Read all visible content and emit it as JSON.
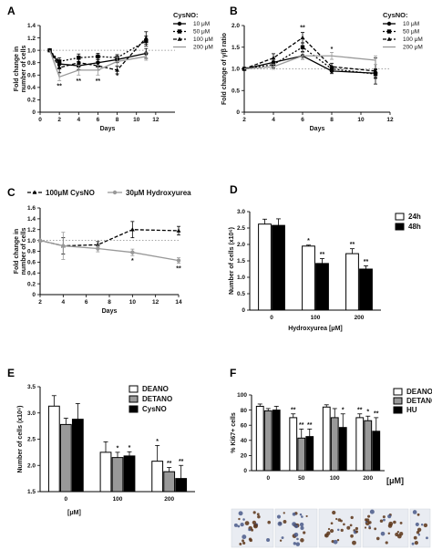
{
  "chart_data": [
    {
      "panel": "A",
      "type": "line",
      "ylabel": "Fold change in number of cells",
      "xlabel": "Days",
      "xlim": [
        0,
        14
      ],
      "ylim": [
        0,
        1.4
      ],
      "xticks": [
        0,
        2,
        4,
        6,
        8,
        10,
        12
      ],
      "yticks": [
        0,
        0.2,
        0.4,
        0.6,
        0.8,
        1.0,
        1.2,
        1.4
      ],
      "tick_labels_y": [
        "0",
        "0.2",
        "0.4",
        "0.6",
        "0.8",
        "1.0",
        "1.2",
        "1.4"
      ],
      "tick_labels_x": [
        "0",
        "2",
        "4",
        "6",
        "8",
        "10",
        "12"
      ],
      "legend_title": "CysNO:",
      "baseline": 1.0,
      "series": [
        {
          "name": "10 μM",
          "x": [
            1,
            2,
            4,
            6,
            8,
            11
          ],
          "y": [
            1.0,
            0.78,
            0.75,
            0.8,
            0.85,
            0.95
          ],
          "err": [
            0,
            0.06,
            0.06,
            0.05,
            0.05,
            0.08
          ],
          "color": "#000000",
          "dash": "",
          "marker": "circle"
        },
        {
          "name": "50 μM",
          "x": [
            1,
            2,
            4,
            6,
            8,
            11
          ],
          "y": [
            1.0,
            0.82,
            0.88,
            0.9,
            0.88,
            1.15
          ],
          "err": [
            0,
            0.06,
            0.06,
            0.05,
            0.05,
            0.08
          ],
          "color": "#000000",
          "dash": "2,2",
          "marker": "square"
        },
        {
          "name": "100 μM",
          "x": [
            1,
            2,
            4,
            6,
            8,
            11
          ],
          "y": [
            1.0,
            0.72,
            0.8,
            0.75,
            0.68,
            1.2
          ],
          "err": [
            0,
            0.08,
            0.07,
            0.07,
            0.06,
            0.1
          ],
          "color": "#000000",
          "dash": "4,2",
          "marker": "triangle"
        },
        {
          "name": "200 μM",
          "x": [
            1,
            2,
            4,
            6,
            8,
            11
          ],
          "y": [
            1.0,
            0.57,
            0.68,
            0.68,
            0.82,
            0.9
          ],
          "err": [
            0,
            0.06,
            0.08,
            0.08,
            0.07,
            0.06
          ],
          "color": "#999999",
          "dash": "",
          "marker": "none"
        }
      ],
      "annotations": [
        {
          "x": 2,
          "y": 0.42,
          "text": "**"
        },
        {
          "x": 4,
          "y": 0.5,
          "text": "**"
        },
        {
          "x": 6,
          "y": 0.5,
          "text": "**"
        },
        {
          "x": 8,
          "y": 0.58,
          "text": "*"
        }
      ]
    },
    {
      "panel": "B",
      "type": "line",
      "ylabel": "Fold change of γ/β ratio",
      "xlabel": "Days",
      "xlim": [
        2,
        12
      ],
      "ylim": [
        0,
        2.0
      ],
      "xticks": [
        2,
        4,
        6,
        8,
        10,
        12
      ],
      "yticks": [
        0,
        0.5,
        1.0,
        1.5,
        2.0
      ],
      "tick_labels_y": [
        "0",
        "0.5",
        "1.0",
        "1.5",
        "2.0"
      ],
      "tick_labels_x": [
        "2",
        "4",
        "6",
        "8",
        "10",
        "12"
      ],
      "legend_title": "CysNO:",
      "baseline": 1.0,
      "series": [
        {
          "name": "10 μM",
          "x": [
            2,
            4,
            6,
            8,
            11
          ],
          "y": [
            1.0,
            1.15,
            1.3,
            0.95,
            0.9
          ],
          "err": [
            0,
            0.08,
            0.08,
            0.06,
            0.1
          ],
          "color": "#000000",
          "dash": "",
          "marker": "circle"
        },
        {
          "name": "50 μM",
          "x": [
            2,
            4,
            6,
            8,
            11
          ],
          "y": [
            1.0,
            1.1,
            1.5,
            1.0,
            0.88
          ],
          "err": [
            0,
            0.08,
            0.1,
            0.06,
            0.1
          ],
          "color": "#000000",
          "dash": "2,2",
          "marker": "square"
        },
        {
          "name": "100 μM",
          "x": [
            2,
            4,
            6,
            8,
            11
          ],
          "y": [
            1.0,
            1.25,
            1.72,
            1.05,
            0.95
          ],
          "err": [
            0,
            0.1,
            0.12,
            0.08,
            0.3
          ],
          "color": "#000000",
          "dash": "4,2",
          "marker": "triangle"
        },
        {
          "name": "200 μM",
          "x": [
            2,
            4,
            6,
            8,
            11
          ],
          "y": [
            1.0,
            1.05,
            1.3,
            1.3,
            1.2
          ],
          "err": [
            0,
            0.06,
            0.08,
            0.08,
            0.1
          ],
          "color": "#999999",
          "dash": "",
          "marker": "none"
        }
      ],
      "annotations": [
        {
          "x": 6,
          "y": 1.95,
          "text": "**"
        },
        {
          "x": 8,
          "y": 1.45,
          "text": "*"
        }
      ]
    },
    {
      "panel": "C",
      "type": "line",
      "ylabel": "Fold change in number of cells",
      "xlabel": "Days",
      "xlim": [
        2,
        14
      ],
      "ylim": [
        0,
        1.6
      ],
      "xticks": [
        2,
        4,
        6,
        8,
        10,
        12,
        14
      ],
      "yticks": [
        0,
        0.2,
        0.4,
        0.6,
        0.8,
        1.0,
        1.2,
        1.4,
        1.6
      ],
      "tick_labels_y": [
        "0",
        "0.2",
        "0.4",
        "0.6",
        "0.8",
        "1.0",
        "1.2",
        "1.4",
        "1.6"
      ],
      "tick_labels_x": [
        "2",
        "4",
        "6",
        "8",
        "10",
        "12",
        "14"
      ],
      "baseline": 1.0,
      "series": [
        {
          "name": "100μM CysNO",
          "x": [
            2,
            4,
            7,
            10,
            14
          ],
          "y": [
            1.0,
            0.9,
            0.92,
            1.2,
            1.18
          ],
          "err": [
            0,
            0.15,
            0.06,
            0.15,
            0.08
          ],
          "color": "#000000",
          "dash": "4,2",
          "marker": "triangle"
        },
        {
          "name": "30μM Hydroxyurea",
          "x": [
            2,
            4,
            7,
            10,
            14
          ],
          "y": [
            1.0,
            0.9,
            0.85,
            0.78,
            0.63
          ],
          "err": [
            0,
            0.25,
            0.06,
            0.06,
            0.05
          ],
          "color": "#999999",
          "dash": "",
          "marker": "circle"
        }
      ],
      "annotations": [
        {
          "x": 10,
          "y": 0.62,
          "text": "*"
        },
        {
          "x": 14,
          "y": 0.48,
          "text": "**"
        }
      ]
    },
    {
      "panel": "D",
      "type": "bar",
      "ylabel": "Number of cells (x10⁶)",
      "xlabel": "Hydroxyurea [μM]",
      "categories": [
        "0",
        "100",
        "200"
      ],
      "ylim": [
        0,
        3.0
      ],
      "yticks": [
        0,
        0.5,
        1.0,
        1.5,
        2.0,
        2.5,
        3.0
      ],
      "tick_labels_y": [
        "0",
        "0.5",
        "1.0",
        "1.5",
        "2.0",
        "2.5",
        "3.0"
      ],
      "series": [
        {
          "name": "24h",
          "values": [
            2.62,
            1.95,
            1.72
          ],
          "err": [
            0.15,
            0.03,
            0.15
          ],
          "color": "#ffffff"
        },
        {
          "name": "48h",
          "values": [
            2.58,
            1.42,
            1.25
          ],
          "err": [
            0.2,
            0.15,
            0.1
          ],
          "color": "#000000"
        }
      ],
      "annotations": [
        {
          "category": 1,
          "series": 0,
          "text": "*"
        },
        {
          "category": 1,
          "series": 1,
          "text": "**"
        },
        {
          "category": 2,
          "series": 0,
          "text": "**"
        },
        {
          "category": 2,
          "series": 1,
          "text": "**"
        }
      ]
    },
    {
      "panel": "E",
      "type": "bar",
      "ylabel": "Number of cells (x10⁶)",
      "xlabel": "[μM]",
      "categories": [
        "0",
        "100",
        "200"
      ],
      "ylim": [
        1.5,
        3.5
      ],
      "yticks": [
        1.5,
        2.0,
        2.5,
        3.0,
        3.5
      ],
      "tick_labels_y": [
        "1.5",
        "2.0",
        "2.5",
        "3.0",
        "3.5"
      ],
      "series": [
        {
          "name": "DEANO",
          "values": [
            3.13,
            2.25,
            2.08
          ],
          "err": [
            0.2,
            0.2,
            0.3
          ],
          "color": "#ffffff"
        },
        {
          "name": "DETANO",
          "values": [
            2.78,
            2.15,
            1.88
          ],
          "err": [
            0.12,
            0.1,
            0.08
          ],
          "color": "#999999"
        },
        {
          "name": "CysNO",
          "values": [
            2.88,
            2.18,
            1.75
          ],
          "err": [
            0.3,
            0.08,
            0.25
          ],
          "color": "#000000"
        }
      ],
      "annotations": [
        {
          "category": 1,
          "series": 1,
          "text": "*"
        },
        {
          "category": 1,
          "series": 2,
          "text": "*"
        },
        {
          "category": 2,
          "series": 0,
          "text": "*"
        },
        {
          "category": 2,
          "series": 1,
          "text": "**"
        },
        {
          "category": 2,
          "series": 2,
          "text": "**"
        }
      ]
    },
    {
      "panel": "F",
      "type": "bar",
      "ylabel": "% Ki67+ cells",
      "xlabel": "[μM]",
      "categories": [
        "0",
        "50",
        "100",
        "200"
      ],
      "ylim": [
        0,
        100
      ],
      "yticks": [
        0,
        20,
        40,
        60,
        80,
        100
      ],
      "tick_labels_y": [
        "0",
        "20",
        "40",
        "60",
        "80",
        "100"
      ],
      "series": [
        {
          "name": "DEANO",
          "values": [
            85,
            70,
            84,
            70
          ],
          "err": [
            3,
            5,
            3,
            5
          ],
          "color": "#ffffff"
        },
        {
          "name": "DETANO",
          "values": [
            79,
            43,
            70,
            66
          ],
          "err": [
            3,
            12,
            12,
            6
          ],
          "color": "#999999"
        },
        {
          "name": "HU",
          "values": [
            80,
            45,
            57,
            52
          ],
          "err": [
            5,
            10,
            18,
            18
          ],
          "color": "#000000"
        }
      ],
      "annotations": [
        {
          "category": 1,
          "series": 0,
          "text": "**"
        },
        {
          "category": 1,
          "series": 1,
          "text": "**"
        },
        {
          "category": 1,
          "series": 2,
          "text": "**"
        },
        {
          "category": 2,
          "series": 2,
          "text": "*"
        },
        {
          "category": 3,
          "series": 0,
          "text": "**"
        },
        {
          "category": 3,
          "series": 1,
          "text": "*"
        },
        {
          "category": 3,
          "series": 2,
          "text": "**"
        }
      ]
    }
  ],
  "panel_letters": [
    "A",
    "B",
    "C",
    "D",
    "E",
    "F"
  ]
}
